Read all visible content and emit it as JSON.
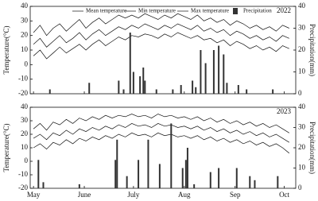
{
  "chart_data": [
    {
      "type": "line",
      "annotation": "2022",
      "ylabel": "Temperature(°C)",
      "y2label": "Precipitation(mm)",
      "legend": "top",
      "x": [
        0,
        4,
        8,
        12,
        16,
        20,
        24,
        28,
        32,
        36,
        40,
        44,
        48,
        52,
        56,
        60,
        64,
        68,
        72,
        76,
        80,
        84,
        88,
        92,
        96,
        100,
        104,
        108,
        112,
        116,
        120,
        124,
        128,
        132,
        136,
        140,
        144,
        148,
        152,
        156
      ],
      "xlim": [
        -2,
        160
      ],
      "xticks": [
        0,
        31,
        61,
        92,
        123,
        153
      ],
      "ylim": [
        -20,
        40
      ],
      "yticks": [
        -20,
        -10,
        0,
        10,
        20,
        30,
        40
      ],
      "y2lim": [
        0,
        40
      ],
      "y2ticks": [
        0,
        10,
        20,
        30,
        40
      ],
      "series": [
        {
          "name": "Mean temperature",
          "color": "#111111",
          "values": [
            14,
            18,
            12,
            16,
            20,
            15,
            18,
            22,
            17,
            21,
            24,
            20,
            23,
            26,
            24,
            27,
            25,
            28,
            26,
            24,
            27,
            25,
            28,
            26,
            24,
            27,
            23,
            25,
            22,
            24,
            20,
            23,
            21,
            18,
            20,
            17,
            19,
            16,
            20,
            18
          ]
        },
        {
          "name": "Min temperature",
          "color": "#111111",
          "values": [
            6,
            10,
            4,
            8,
            12,
            8,
            11,
            14,
            10,
            14,
            17,
            13,
            16,
            19,
            17,
            20,
            19,
            21,
            20,
            18,
            21,
            19,
            22,
            20,
            18,
            20,
            17,
            18,
            15,
            17,
            13,
            16,
            14,
            11,
            13,
            10,
            12,
            9,
            13,
            11
          ]
        },
        {
          "name": "Max temperature",
          "color": "#111111",
          "values": [
            22,
            27,
            20,
            25,
            28,
            23,
            27,
            31,
            25,
            29,
            32,
            28,
            31,
            34,
            32,
            34,
            32,
            35,
            33,
            31,
            34,
            32,
            35,
            33,
            31,
            34,
            30,
            32,
            29,
            31,
            27,
            30,
            28,
            25,
            27,
            24,
            26,
            23,
            27,
            25
          ]
        },
        {
          "name": "Precipitation",
          "color": "#333333",
          "axis": "y2",
          "x": [
            10,
            34,
            52,
            55,
            59,
            61,
            65,
            67,
            68,
            75,
            85,
            90,
            97,
            99,
            102,
            105,
            110,
            113,
            116,
            118,
            125,
            130,
            146
          ],
          "values": [
            2,
            5,
            6,
            2,
            28,
            10,
            8,
            12,
            6,
            2,
            2,
            4,
            6,
            3,
            20,
            14,
            20,
            22,
            18,
            5,
            4,
            2,
            2
          ]
        }
      ]
    },
    {
      "type": "line",
      "annotation": "2023",
      "ylabel": "Temperature(°C)",
      "y2label": "Precipitation(mm)",
      "x": [
        0,
        4,
        8,
        12,
        16,
        20,
        24,
        28,
        32,
        36,
        40,
        44,
        48,
        52,
        56,
        60,
        64,
        68,
        72,
        76,
        80,
        84,
        88,
        92,
        96,
        100,
        104,
        108,
        112,
        116,
        120,
        124,
        128,
        132,
        136,
        140,
        144,
        148,
        152,
        156
      ],
      "xlim": [
        -2,
        160
      ],
      "xticks": [
        {
          "value": 0,
          "label": "May"
        },
        {
          "value": 31,
          "label": "June"
        },
        {
          "value": 61,
          "label": "July"
        },
        {
          "value": 92,
          "label": "Aug"
        },
        {
          "value": 123,
          "label": "Sep"
        },
        {
          "value": 153,
          "label": "Oct"
        }
      ],
      "ylim": [
        -20,
        40
      ],
      "yticks": [
        -20,
        -10,
        0,
        10,
        20,
        30,
        40
      ],
      "y2lim": [
        0,
        40
      ],
      "y2ticks": [
        0,
        10,
        20,
        30,
        40
      ],
      "series": [
        {
          "color": "#111111",
          "values": [
            17,
            20,
            16,
            21,
            19,
            23,
            20,
            24,
            22,
            25,
            23,
            26,
            24,
            27,
            25,
            28,
            26,
            27,
            25,
            28,
            26,
            27,
            25,
            26,
            24,
            26,
            23,
            25,
            22,
            24,
            21,
            23,
            20,
            22,
            19,
            21,
            18,
            20,
            17,
            14
          ]
        },
        {
          "color": "#111111",
          "values": [
            10,
            13,
            9,
            14,
            12,
            16,
            13,
            17,
            15,
            18,
            16,
            19,
            17,
            20,
            18,
            21,
            19,
            20,
            18,
            21,
            19,
            20,
            18,
            19,
            17,
            19,
            16,
            18,
            15,
            17,
            14,
            16,
            13,
            15,
            12,
            14,
            11,
            13,
            10,
            6
          ]
        },
        {
          "color": "#111111",
          "values": [
            24,
            28,
            23,
            29,
            27,
            31,
            28,
            32,
            30,
            33,
            31,
            34,
            32,
            34,
            33,
            35,
            33,
            34,
            32,
            35,
            33,
            34,
            32,
            33,
            31,
            33,
            30,
            32,
            29,
            31,
            28,
            30,
            27,
            29,
            26,
            28,
            25,
            27,
            24,
            21
          ]
        },
        {
          "color": "#333333",
          "axis": "y2",
          "x": [
            3,
            6,
            28,
            50,
            51,
            57,
            64,
            70,
            77,
            84,
            91,
            93,
            94,
            98,
            108,
            113,
            124,
            132,
            135,
            149
          ],
          "values": [
            14,
            3,
            2,
            14,
            24,
            6,
            14,
            24,
            12,
            32,
            10,
            14,
            20,
            2,
            8,
            10,
            10,
            6,
            4,
            6
          ]
        }
      ]
    }
  ]
}
